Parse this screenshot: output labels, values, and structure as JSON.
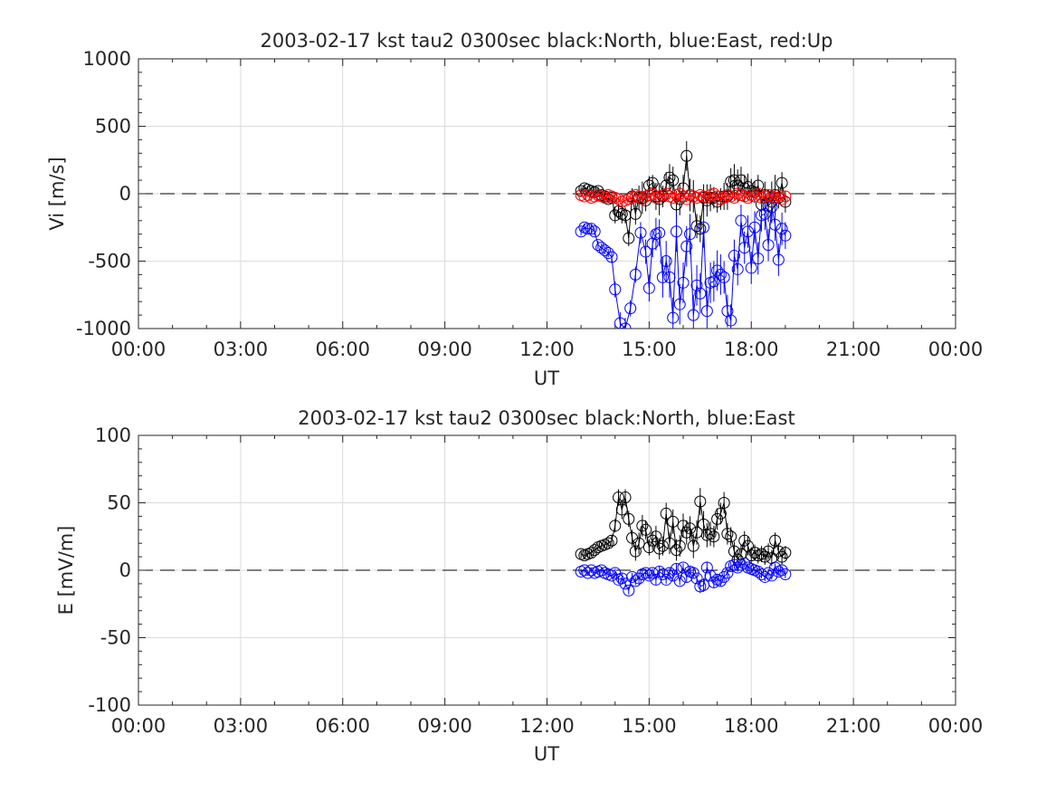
{
  "chart_data": [
    {
      "type": "scatter",
      "title": "2003-02-17 kst tau2 0300sec black:North, blue:East, red:Up",
      "xlabel": "UT",
      "ylabel": "Vi [m/s]",
      "xlim": [
        0,
        24
      ],
      "ylim": [
        -1000,
        1000
      ],
      "grid": true,
      "xtick_labels": [
        "00:00",
        "03:00",
        "06:00",
        "09:00",
        "12:00",
        "15:00",
        "18:00",
        "21:00",
        "00:00"
      ],
      "ytick_labels": [
        "1000",
        "500",
        "0",
        "-500",
        "-1000"
      ],
      "yticks": [
        1000,
        500,
        0,
        -500,
        -1000
      ],
      "reference_line": 0,
      "series": [
        {
          "name": "North",
          "color": "#000000",
          "x": [
            13.0,
            13.1,
            13.2,
            13.3,
            13.4,
            13.5,
            13.6,
            13.7,
            13.8,
            13.9,
            14.0,
            14.1,
            14.2,
            14.3,
            14.4,
            14.5,
            14.6,
            14.7,
            14.8,
            14.9,
            15.0,
            15.1,
            15.2,
            15.3,
            15.4,
            15.5,
            15.6,
            15.7,
            15.8,
            15.9,
            16.0,
            16.1,
            16.2,
            16.3,
            16.4,
            16.5,
            16.6,
            16.7,
            16.8,
            16.9,
            17.0,
            17.1,
            17.2,
            17.3,
            17.4,
            17.5,
            17.6,
            17.7,
            17.8,
            17.9,
            18.0,
            18.1,
            18.2,
            18.3,
            18.4,
            18.5,
            18.6,
            18.7,
            18.8,
            18.9,
            19.0
          ],
          "y": [
            20,
            40,
            30,
            20,
            10,
            20,
            -10,
            -20,
            -40,
            -30,
            -160,
            -130,
            -150,
            -160,
            -330,
            -20,
            -150,
            -30,
            -30,
            -50,
            60,
            80,
            -20,
            -40,
            -20,
            60,
            120,
            100,
            -80,
            -40,
            40,
            280,
            -10,
            -20,
            -240,
            -260,
            -30,
            -50,
            -30,
            -30,
            -60,
            -40,
            -20,
            -20,
            90,
            100,
            60,
            100,
            40,
            50,
            20,
            10,
            60,
            -80,
            -10,
            -90,
            -60,
            -10,
            -30,
            80,
            -60
          ],
          "err": [
            30,
            30,
            30,
            30,
            30,
            30,
            30,
            30,
            30,
            30,
            60,
            60,
            70,
            60,
            60,
            60,
            80,
            90,
            120,
            80,
            70,
            60,
            100,
            120,
            80,
            100,
            100,
            100,
            100,
            120,
            100,
            110,
            120,
            120,
            90,
            100,
            100,
            120,
            100,
            80,
            80,
            80,
            100,
            100,
            100,
            120,
            120,
            100,
            100,
            100,
            90,
            80,
            80,
            100,
            100,
            120,
            150,
            150,
            80,
            80,
            80
          ]
        },
        {
          "name": "East",
          "color": "#0000ff",
          "x": [
            13.0,
            13.1,
            13.2,
            13.3,
            13.4,
            13.5,
            13.6,
            13.7,
            13.8,
            13.9,
            14.0,
            14.15,
            14.3,
            14.45,
            14.6,
            14.75,
            14.9,
            15.0,
            15.1,
            15.2,
            15.3,
            15.4,
            15.5,
            15.6,
            15.7,
            15.8,
            15.9,
            16.0,
            16.1,
            16.2,
            16.3,
            16.4,
            16.5,
            16.6,
            16.7,
            16.8,
            16.9,
            17.0,
            17.1,
            17.2,
            17.3,
            17.4,
            17.5,
            17.6,
            17.7,
            17.8,
            17.9,
            18.0,
            18.1,
            18.2,
            18.3,
            18.4,
            18.5,
            18.6,
            18.7,
            18.8,
            18.9,
            19.0
          ],
          "y": [
            -280,
            -250,
            -260,
            -260,
            -280,
            -380,
            -400,
            -420,
            -440,
            -470,
            -710,
            -960,
            -1000,
            -850,
            -600,
            -290,
            -430,
            -700,
            -370,
            -300,
            -290,
            -620,
            -500,
            -620,
            -920,
            -280,
            -820,
            -660,
            -390,
            -300,
            -900,
            -680,
            -740,
            -250,
            -870,
            -660,
            -650,
            -570,
            -600,
            -620,
            -870,
            -940,
            -460,
            -560,
            -200,
            -400,
            -280,
            -550,
            -250,
            -480,
            -160,
            -150,
            -380,
            -100,
            -230,
            -490,
            -260,
            -310
          ],
          "err": [
            30,
            30,
            30,
            30,
            30,
            30,
            30,
            30,
            30,
            40,
            60,
            80,
            80,
            60,
            60,
            80,
            90,
            100,
            100,
            120,
            100,
            150,
            150,
            150,
            150,
            150,
            150,
            150,
            150,
            150,
            150,
            150,
            150,
            150,
            150,
            150,
            150,
            150,
            150,
            120,
            120,
            120,
            120,
            120,
            120,
            120,
            120,
            120,
            120,
            120,
            120,
            120,
            120,
            120,
            120,
            120,
            120,
            100
          ]
        },
        {
          "name": "Up",
          "color": "#ff0000",
          "x": [
            13.0,
            13.1,
            13.2,
            13.3,
            13.4,
            13.5,
            13.6,
            13.7,
            13.8,
            13.9,
            14.0,
            14.1,
            14.2,
            14.3,
            14.4,
            14.5,
            14.6,
            14.7,
            14.8,
            14.9,
            15.0,
            15.1,
            15.2,
            15.3,
            15.4,
            15.5,
            15.6,
            15.7,
            15.8,
            15.9,
            16.0,
            16.1,
            16.2,
            16.3,
            16.4,
            16.5,
            16.6,
            16.7,
            16.8,
            16.9,
            17.0,
            17.1,
            17.2,
            17.3,
            17.4,
            17.5,
            17.6,
            17.7,
            17.8,
            17.9,
            18.0,
            18.1,
            18.2,
            18.3,
            18.4,
            18.5,
            18.6,
            18.7,
            18.8,
            18.9,
            19.0
          ],
          "y": [
            -10,
            -20,
            -10,
            -30,
            -20,
            -10,
            -20,
            -30,
            -10,
            -20,
            -30,
            -40,
            -60,
            -50,
            -40,
            -30,
            -10,
            -20,
            -40,
            -20,
            -10,
            0,
            -30,
            -20,
            -10,
            0,
            -20,
            -30,
            -10,
            0,
            -20,
            -40,
            -10,
            -20,
            -30,
            -10,
            -20,
            -30,
            -10,
            0,
            -20,
            -40,
            -30,
            -10,
            -20,
            -30,
            0,
            -10,
            -20,
            -30,
            -10,
            -20,
            0,
            -30,
            -20,
            -10,
            -20,
            -30,
            -10,
            -40,
            -20
          ],
          "err": [
            15,
            15,
            15,
            15,
            15,
            15,
            15,
            15,
            15,
            15,
            20,
            20,
            25,
            20,
            20,
            20,
            20,
            25,
            25,
            20,
            20,
            25,
            25,
            25,
            20,
            20,
            25,
            25,
            25,
            20,
            20,
            25,
            25,
            25,
            20,
            20,
            25,
            25,
            25,
            20,
            20,
            25,
            25,
            25,
            20,
            20,
            25,
            25,
            25,
            20,
            20,
            25,
            25,
            25,
            20,
            20,
            25,
            25,
            25,
            20,
            20
          ]
        }
      ]
    },
    {
      "type": "scatter",
      "title": "2003-02-17 kst tau2 0300sec black:North, blue:East",
      "xlabel": "UT",
      "ylabel": "E [mV/m]",
      "xlim": [
        0,
        24
      ],
      "ylim": [
        -100,
        100
      ],
      "grid": true,
      "xtick_labels": [
        "00:00",
        "03:00",
        "06:00",
        "09:00",
        "12:00",
        "15:00",
        "18:00",
        "21:00",
        "00:00"
      ],
      "ytick_labels": [
        "100",
        "50",
        "0",
        "-50",
        "-100"
      ],
      "yticks": [
        100,
        50,
        0,
        -50,
        -100
      ],
      "reference_line": 0,
      "series": [
        {
          "name": "North",
          "color": "#000000",
          "x": [
            13.0,
            13.1,
            13.2,
            13.3,
            13.4,
            13.5,
            13.6,
            13.7,
            13.8,
            13.9,
            14.0,
            14.1,
            14.2,
            14.3,
            14.4,
            14.5,
            14.6,
            14.7,
            14.8,
            14.9,
            15.0,
            15.1,
            15.2,
            15.3,
            15.4,
            15.5,
            15.6,
            15.7,
            15.8,
            15.9,
            16.0,
            16.1,
            16.2,
            16.3,
            16.4,
            16.5,
            16.6,
            16.7,
            16.8,
            16.9,
            17.0,
            17.1,
            17.2,
            17.3,
            17.4,
            17.5,
            17.6,
            17.7,
            17.8,
            17.9,
            18.0,
            18.1,
            18.2,
            18.3,
            18.4,
            18.5,
            18.6,
            18.7,
            18.8,
            18.9,
            19.0
          ],
          "y": [
            12,
            11,
            12,
            13,
            15,
            17,
            18,
            19,
            20,
            22,
            33,
            54,
            45,
            54,
            38,
            24,
            14,
            20,
            33,
            30,
            17,
            22,
            25,
            16,
            18,
            42,
            20,
            36,
            15,
            18,
            33,
            28,
            31,
            18,
            28,
            51,
            34,
            26,
            27,
            25,
            38,
            42,
            50,
            27,
            25,
            14,
            8,
            12,
            22,
            18,
            11,
            13,
            11,
            12,
            10,
            14,
            9,
            22,
            14,
            10,
            13
          ],
          "err": [
            3,
            3,
            3,
            3,
            3,
            3,
            3,
            3,
            3,
            4,
            5,
            6,
            7,
            6,
            6,
            6,
            7,
            8,
            8,
            7,
            6,
            7,
            8,
            8,
            7,
            8,
            8,
            9,
            8,
            8,
            9,
            9,
            9,
            9,
            9,
            10,
            10,
            9,
            9,
            8,
            8,
            8,
            8,
            8,
            7,
            7,
            7,
            7,
            7,
            7,
            6,
            6,
            6,
            6,
            6,
            6,
            6,
            6,
            6,
            6,
            5
          ]
        },
        {
          "name": "East",
          "color": "#0000ff",
          "x": [
            13.0,
            13.1,
            13.2,
            13.3,
            13.4,
            13.5,
            13.6,
            13.7,
            13.8,
            13.9,
            14.0,
            14.1,
            14.2,
            14.3,
            14.4,
            14.5,
            14.6,
            14.7,
            14.8,
            14.9,
            15.0,
            15.1,
            15.2,
            15.3,
            15.4,
            15.5,
            15.6,
            15.7,
            15.8,
            15.9,
            16.0,
            16.1,
            16.2,
            16.3,
            16.4,
            16.5,
            16.6,
            16.7,
            16.8,
            16.9,
            17.0,
            17.1,
            17.2,
            17.3,
            17.4,
            17.5,
            17.6,
            17.7,
            17.8,
            17.9,
            18.0,
            18.1,
            18.2,
            18.3,
            18.4,
            18.5,
            18.6,
            18.7,
            18.8,
            18.9,
            19.0
          ],
          "y": [
            -1,
            0,
            -2,
            0,
            -2,
            -1,
            0,
            -2,
            -3,
            -4,
            -2,
            -7,
            -6,
            -10,
            -15,
            -5,
            -8,
            -6,
            -3,
            -2,
            -4,
            -2,
            -7,
            -1,
            -3,
            -7,
            -2,
            -4,
            1,
            -8,
            2,
            -5,
            -1,
            -2,
            -6,
            -12,
            -11,
            2,
            -4,
            -9,
            -7,
            -8,
            -5,
            -2,
            3,
            4,
            2,
            4,
            5,
            2,
            1,
            0,
            -1,
            -3,
            -5,
            -2,
            -4,
            2,
            -1,
            0,
            -3
          ],
          "err": [
            2,
            2,
            2,
            2,
            2,
            2,
            2,
            2,
            2,
            2,
            3,
            3,
            4,
            3,
            3,
            3,
            3,
            4,
            4,
            3,
            3,
            3,
            4,
            4,
            3,
            3,
            4,
            4,
            4,
            3,
            3,
            4,
            4,
            4,
            4,
            5,
            5,
            4,
            4,
            4,
            4,
            4,
            4,
            4,
            3,
            3,
            3,
            3,
            3,
            3,
            3,
            3,
            3,
            3,
            3,
            3,
            3,
            3,
            3,
            3,
            3
          ]
        }
      ]
    }
  ]
}
